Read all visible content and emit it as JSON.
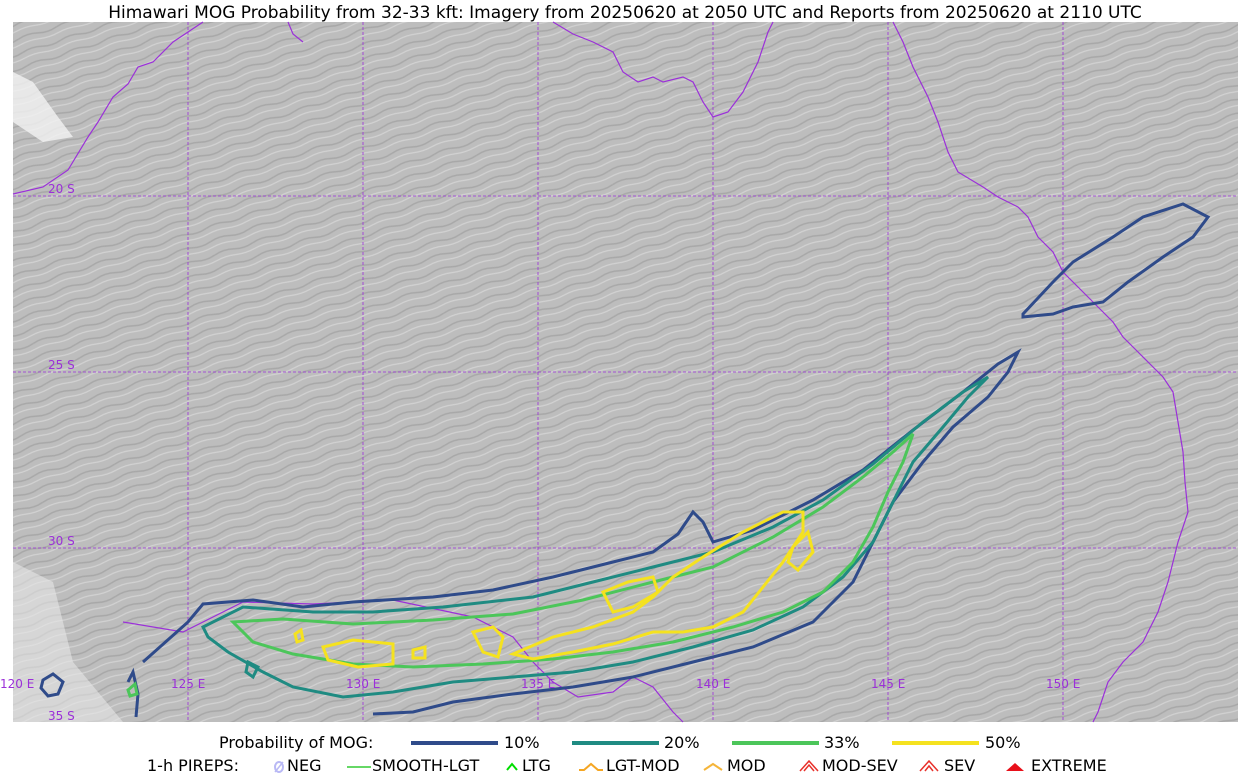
{
  "title": "Himawari MOG Probability from 32-33 kft: Imagery from 20250620 at 2050 UTC and Reports from 20250620 at 2110 UTC",
  "map": {
    "lat_labels": [
      "20 S",
      "25 S",
      "30 S",
      "35 S"
    ],
    "lon_labels": [
      "120 E",
      "125 E",
      "130 E",
      "135 E",
      "140 E",
      "145 E",
      "150 E"
    ],
    "gridline_color": "#9b30d9",
    "coastline_color": "#9b30d9",
    "contour_colors": {
      "p10": "#2f4b8a",
      "p20": "#1f8b82",
      "p33": "#4cc65a",
      "p50": "#f5e21f"
    }
  },
  "legend": {
    "probability_label": "Probability of MOG:",
    "probability_items": [
      {
        "label": "10%",
        "color": "#2f4b8a"
      },
      {
        "label": "20%",
        "color": "#1f8b82"
      },
      {
        "label": "33%",
        "color": "#4cc65a"
      },
      {
        "label": "50%",
        "color": "#f5e21f"
      }
    ],
    "pirep_label": "1-h PIREPS:",
    "pirep_items": [
      {
        "label": "NEG",
        "color": "#b9b9f5",
        "icon": "neg-icon"
      },
      {
        "label": "SMOOTH-LGT",
        "color": "#33cc33",
        "icon": "smooth-lgt-icon"
      },
      {
        "label": "LTG",
        "color": "#00dd00",
        "icon": "ltg-icon"
      },
      {
        "label": "LGT-MOD",
        "color": "#f5a623",
        "icon": "lgt-mod-icon"
      },
      {
        "label": "MOD",
        "color": "#f5b53a",
        "icon": "mod-icon"
      },
      {
        "label": "MOD-SEV",
        "color": "#e8302a",
        "icon": "mod-sev-icon"
      },
      {
        "label": "SEV",
        "color": "#e8302a",
        "icon": "sev-icon"
      },
      {
        "label": "EXTREME",
        "color": "#e8101a",
        "icon": "extreme-icon"
      }
    ]
  }
}
